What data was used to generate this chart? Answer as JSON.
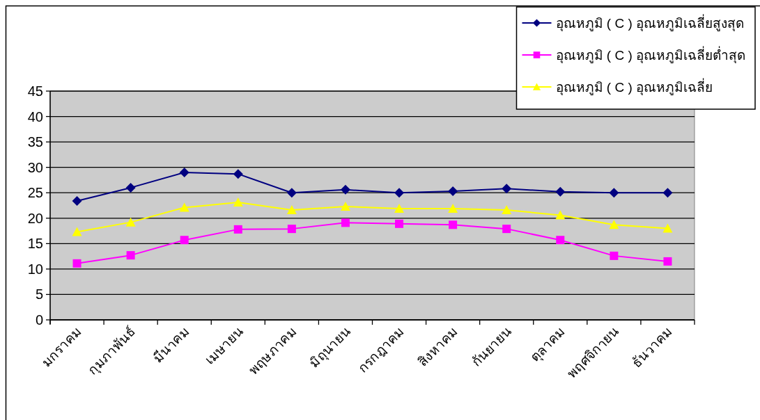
{
  "chart_data": {
    "type": "line",
    "categories": [
      "มกราคม",
      "กุมภาพันธ์",
      "มีนาคม",
      "เมษายน",
      "พฤษภาคม",
      "มิถุนายน",
      "กรกฎาคม",
      "สิงหาคม",
      "กันยายน",
      "ตุลาคม",
      "พฤศจิกายน",
      "ธันวาคม"
    ],
    "series": [
      {
        "name": "อุณหภูมิ ( C ) อุณหภูมิเฉลี่ยสูงสุด",
        "color": "#000080",
        "marker": "diamond",
        "values": [
          23.4,
          26.0,
          29.0,
          28.7,
          25.0,
          25.6,
          25.0,
          25.3,
          25.8,
          25.2,
          25.0,
          25.0
        ]
      },
      {
        "name": "อุณหภูมิ ( C ) อุณหภูมิเฉลี่ยต่ำสุด",
        "color": "#ff00ff",
        "marker": "square",
        "values": [
          11.1,
          12.7,
          15.7,
          17.8,
          17.9,
          19.1,
          18.9,
          18.7,
          17.9,
          15.7,
          12.6,
          11.5
        ]
      },
      {
        "name": "อุณหภูมิ ( C ) อุณหภูมิเฉลี่ย",
        "color": "#ffff00",
        "marker": "triangle",
        "values": [
          17.3,
          19.2,
          22.1,
          23.1,
          21.6,
          22.3,
          21.9,
          21.9,
          21.6,
          20.6,
          18.7,
          18.0
        ]
      }
    ],
    "ylim": [
      0,
      45
    ],
    "yticks": [
      0,
      5,
      10,
      15,
      20,
      25,
      30,
      35,
      40,
      45
    ],
    "grid": "y",
    "legend": "top right"
  }
}
